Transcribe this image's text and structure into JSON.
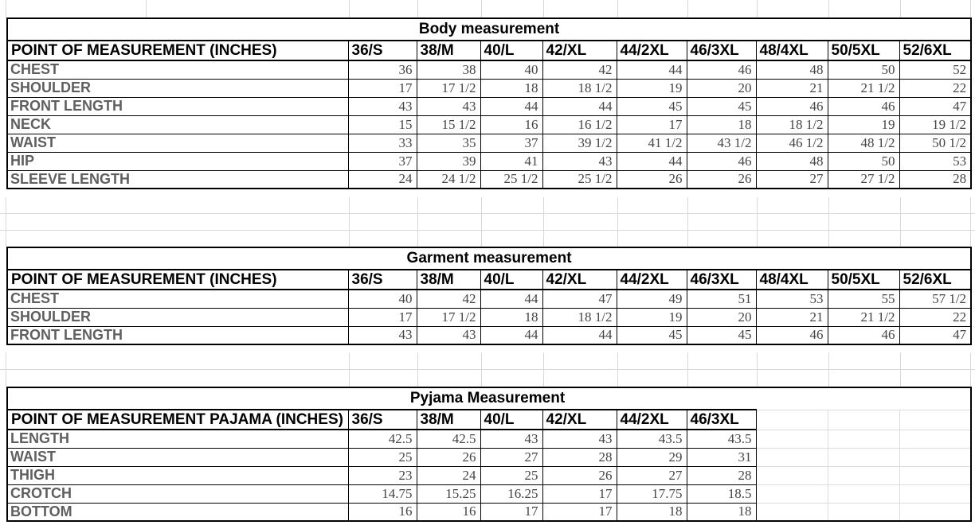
{
  "colors": {
    "background": "#ffffff",
    "table_border": "#000000",
    "header_text": "#000000",
    "row_label_text": "#5f5f5f",
    "value_text": "#454545",
    "gridline": "#d8d8d8"
  },
  "tables": {
    "body": {
      "title": "Body measurement",
      "header_label": "POINT OF MEASUREMENT (INCHES)",
      "sizes": [
        "36/S",
        "38/M",
        "40/L",
        "42/XL",
        "44/2XL",
        "46/3XL",
        "48/4XL",
        "50/5XL",
        "52/6XL"
      ],
      "rows": [
        {
          "label": "CHEST",
          "values": [
            "36",
            "38",
            "40",
            "42",
            "44",
            "46",
            "48",
            "50",
            "52"
          ]
        },
        {
          "label": "SHOULDER",
          "values": [
            "17",
            "17 1/2",
            "18",
            "18 1/2",
            "19",
            "20",
            "21",
            "21 1/2",
            "22"
          ]
        },
        {
          "label": "FRONT LENGTH",
          "values": [
            "43",
            "43",
            "44",
            "44",
            "45",
            "45",
            "46",
            "46",
            "47"
          ]
        },
        {
          "label": "NECK",
          "values": [
            "15",
            "15 1/2",
            "16",
            "16 1/2",
            "17",
            "18",
            "18 1/2",
            "19",
            "19 1/2"
          ]
        },
        {
          "label": "WAIST",
          "values": [
            "33",
            "35",
            "37",
            "39 1/2",
            "41 1/2",
            "43 1/2",
            "46 1/2",
            "48 1/2",
            "50 1/2"
          ]
        },
        {
          "label": "HIP",
          "values": [
            "37",
            "39",
            "41",
            "43",
            "44",
            "46",
            "48",
            "50",
            "53"
          ]
        },
        {
          "label": "SLEEVE LENGTH",
          "values": [
            "24",
            "24 1/2",
            "25 1/2",
            "25 1/2",
            "26",
            "26",
            "27",
            "27 1/2",
            "28"
          ]
        }
      ]
    },
    "garment": {
      "title": "Garment measurement",
      "header_label": "POINT OF MEASUREMENT (INCHES)",
      "sizes": [
        "36/S",
        "38/M",
        "40/L",
        "42/XL",
        "44/2XL",
        "46/3XL",
        "48/4XL",
        "50/5XL",
        "52/6XL"
      ],
      "rows": [
        {
          "label": "CHEST",
          "values": [
            "40",
            "42",
            "44",
            "47",
            "49",
            "51",
            "53",
            "55",
            "57 1/2"
          ]
        },
        {
          "label": "SHOULDER",
          "values": [
            "17",
            "17 1/2",
            "18",
            "18 1/2",
            "19",
            "20",
            "21",
            "21 1/2",
            "22"
          ]
        },
        {
          "label": "FRONT LENGTH",
          "values": [
            "43",
            "43",
            "44",
            "44",
            "45",
            "45",
            "46",
            "46",
            "47"
          ]
        }
      ]
    },
    "pyjama": {
      "title": "Pyjama Measurement",
      "header_label": "POINT OF MEASUREMENT PAJAMA (INCHES)",
      "sizes": [
        "36/S",
        "38/M",
        "40/L",
        "42/XL",
        "44/2XL",
        "46/3XL"
      ],
      "rows": [
        {
          "label": "LENGTH",
          "values": [
            "42.5",
            "42.5",
            "43",
            "43",
            "43.5",
            "43.5"
          ]
        },
        {
          "label": "WAIST",
          "values": [
            "25",
            "26",
            "27",
            "28",
            "29",
            "31"
          ]
        },
        {
          "label": "THIGH",
          "values": [
            "23",
            "24",
            "25",
            "26",
            "27",
            "28"
          ]
        },
        {
          "label": "CROTCH",
          "values": [
            "14.75",
            "15.25",
            "16.25",
            "17",
            "17.75",
            "18.5"
          ]
        },
        {
          "label": "BOTTOM",
          "values": [
            "16",
            "16",
            "17",
            "17",
            "18",
            "18"
          ]
        }
      ]
    }
  }
}
